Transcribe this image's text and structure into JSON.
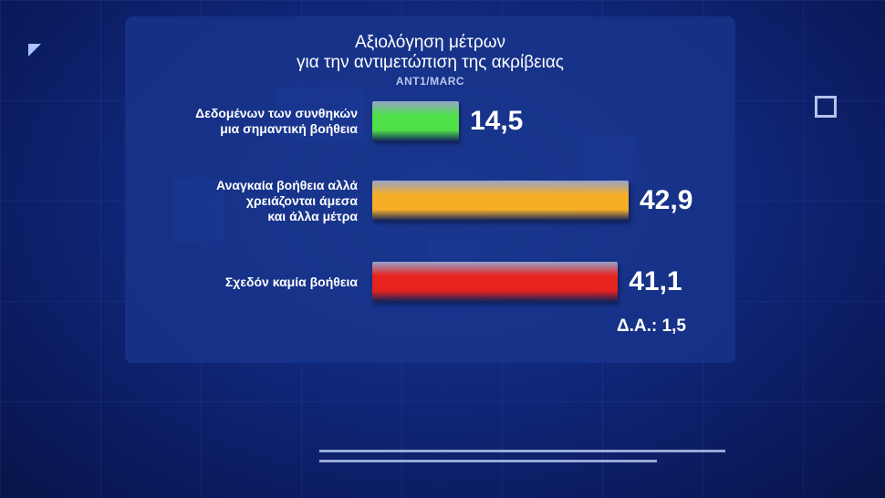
{
  "chart_data": {
    "type": "bar",
    "orientation": "horizontal",
    "title_lines": [
      "Αξιολόγηση μέτρων",
      "για την αντιμετώπιση της ακρίβειας"
    ],
    "source": "ANT1/MARC",
    "categories": [
      [
        "Δεδομένων των συνθηκών",
        "μια σημαντική βοήθεια"
      ],
      [
        "Αναγκαία βοήθεια αλλά",
        "χρειάζονται άμεσα",
        "και άλλα μέτρα"
      ],
      [
        "Σχεδόν καμία βοήθεια"
      ]
    ],
    "values": [
      14.5,
      42.9,
      41.1
    ],
    "value_labels": [
      "14,5",
      "42,9",
      "41,1"
    ],
    "colors": [
      "#4fe04a",
      "#f6ae27",
      "#e8221e"
    ],
    "note": "Δ.Α.: 1,5",
    "grid": false,
    "legend": "none"
  }
}
